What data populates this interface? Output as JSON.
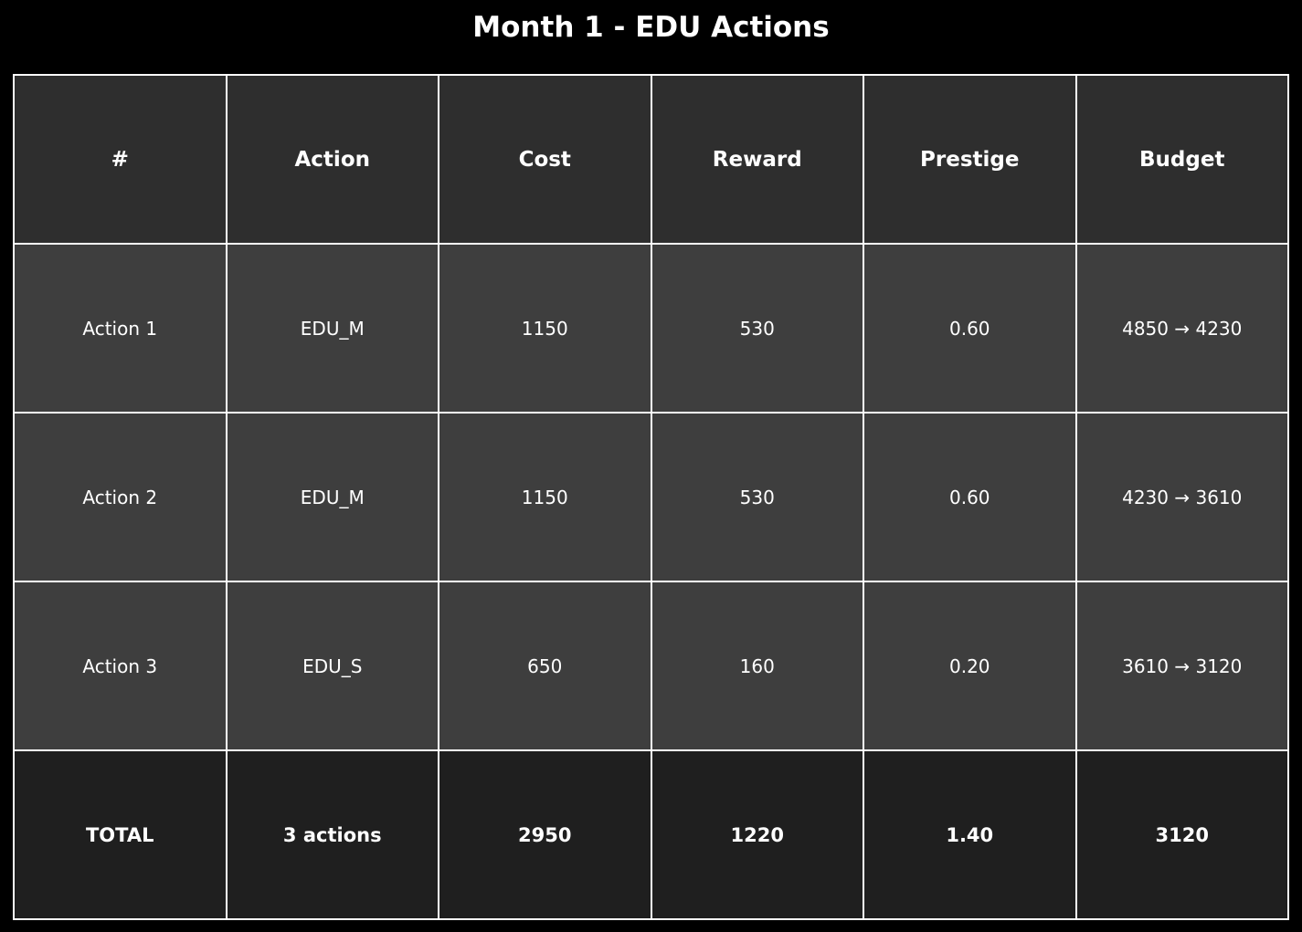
{
  "chart_data": {
    "type": "table",
    "title": "Month 1 - EDU Actions",
    "columns": [
      "#",
      "Action",
      "Cost",
      "Reward",
      "Prestige",
      "Budget"
    ],
    "rows": [
      [
        "Action 1",
        "EDU_M",
        "1150",
        "530",
        "0.60",
        "4850 → 4230"
      ],
      [
        "Action 2",
        "EDU_M",
        "1150",
        "530",
        "0.60",
        "4230 → 3610"
      ],
      [
        "Action 3",
        "EDU_S",
        "650",
        "160",
        "0.20",
        "3610 → 3120"
      ]
    ],
    "total": [
      "TOTAL",
      "3 actions",
      "2950",
      "1220",
      "1.40",
      "3120"
    ]
  },
  "colors": {
    "background": "#000000",
    "header_fill": "#2e2e2e",
    "row_fill": "#3e3e3e",
    "total_fill": "#1f1f1f",
    "border": "#ffffff",
    "text": "#ffffff"
  }
}
